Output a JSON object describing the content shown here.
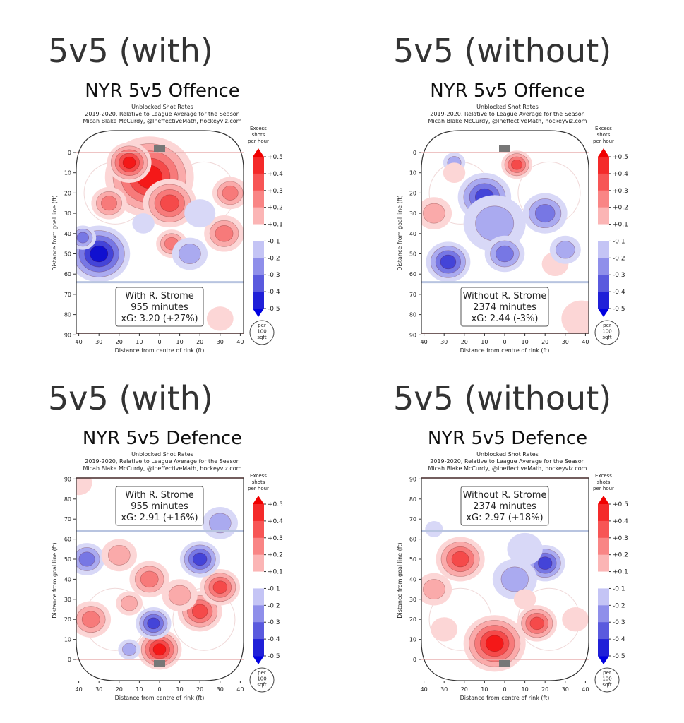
{
  "colorbar": {
    "label_lines": [
      "Excess",
      "shots",
      "per hour"
    ],
    "ticks": [
      "+0.5",
      "+0.4",
      "+0.3",
      "+0.2",
      "+0.1",
      "-0.1",
      "-0.2",
      "-0.3",
      "-0.4",
      "-0.5"
    ],
    "band_colors": [
      "#f42a2a",
      "#f75555",
      "#f98585",
      "#fbb5b5",
      "#ffffff",
      "#c4c4f5",
      "#8f8fea",
      "#5a5ade",
      "#2020d8"
    ],
    "tip_top": "#f00000",
    "tip_bottom": "#0000e0",
    "unit_lines": [
      "per",
      "100",
      "sqft"
    ]
  },
  "level_colors": {
    "0.5": "#f41818",
    "0.4": "#f54a4a",
    "0.3": "#f77a7a",
    "0.2": "#faaaaa",
    "0.1": "#fcd6d6",
    "-0.1": "#d8d8f7",
    "-0.2": "#aaaaf0",
    "-0.3": "#7777e4",
    "-0.4": "#4444d8",
    "-0.5": "#1010d0"
  },
  "chart_data": [
    {
      "type": "heatmap",
      "heading": "5v5 (with)",
      "title": "NYR 5v5 Offence",
      "subtitle_lines": [
        "Unblocked Shot Rates",
        "2019-2020, Relative to League Average for the Season",
        "Micah Blake McCurdy, @IneffectiveMath, hockeyviz.com"
      ],
      "mode": "offence",
      "xlabel": "Distance from centre of rink (ft)",
      "ylabel": "Distance from goal line (ft)",
      "xticks": [
        "40",
        "30",
        "20",
        "10",
        "0",
        "10",
        "20",
        "30",
        "40"
      ],
      "yticks": [
        "0",
        "10",
        "20",
        "30",
        "40",
        "50",
        "60",
        "70",
        "80",
        "90"
      ],
      "info": [
        "With R. Strome",
        "955 minutes",
        "xG: 3.20 (+27%)"
      ],
      "hotspots": [
        {
          "x": -5,
          "y": 12,
          "r": 20,
          "v": 0.5
        },
        {
          "x": -15,
          "y": 5,
          "r": 10,
          "v": 0.5
        },
        {
          "x": 5,
          "y": 25,
          "r": 12,
          "v": 0.4
        },
        {
          "x": -25,
          "y": 25,
          "r": 8,
          "v": 0.3
        },
        {
          "x": 35,
          "y": 20,
          "r": 8,
          "v": 0.3
        },
        {
          "x": 32,
          "y": 40,
          "r": 9,
          "v": 0.3
        },
        {
          "x": 6,
          "y": 45,
          "r": 7,
          "v": 0.3
        },
        {
          "x": -30,
          "y": 50,
          "r": 14,
          "v": -0.5
        },
        {
          "x": -38,
          "y": 42,
          "r": 6,
          "v": -0.3
        },
        {
          "x": 15,
          "y": 50,
          "r": 8,
          "v": -0.2
        },
        {
          "x": 20,
          "y": 30,
          "r": 7,
          "v": -0.1
        },
        {
          "x": 30,
          "y": 82,
          "r": 6,
          "v": 0.1
        },
        {
          "x": -8,
          "y": 35,
          "r": 5,
          "v": -0.1
        }
      ]
    },
    {
      "type": "heatmap",
      "heading": "5v5 (without)",
      "title": "NYR 5v5 Offence",
      "subtitle_lines": [
        "Unblocked Shot Rates",
        "2019-2020, Relative to League Average for the Season",
        "Micah Blake McCurdy, @IneffectiveMath, hockeyviz.com"
      ],
      "mode": "offence",
      "xlabel": "Distance from centre of rink (ft)",
      "ylabel": "Distance from goal line (ft)",
      "xticks": [
        "40",
        "30",
        "20",
        "10",
        "0",
        "10",
        "20",
        "30",
        "40"
      ],
      "yticks": [
        "0",
        "10",
        "20",
        "30",
        "40",
        "50",
        "60",
        "70",
        "80",
        "90"
      ],
      "info": [
        "Without R. Strome",
        "2374 minutes",
        "xG: 2.44 (-3%)"
      ],
      "hotspots": [
        {
          "x": 6,
          "y": 6,
          "r": 7,
          "v": 0.4
        },
        {
          "x": -10,
          "y": 22,
          "r": 12,
          "v": -0.4
        },
        {
          "x": -5,
          "y": 35,
          "r": 14,
          "v": -0.2
        },
        {
          "x": -28,
          "y": 54,
          "r": 10,
          "v": -0.4
        },
        {
          "x": 0,
          "y": 50,
          "r": 9,
          "v": -0.3
        },
        {
          "x": 20,
          "y": 30,
          "r": 10,
          "v": -0.3
        },
        {
          "x": -35,
          "y": 30,
          "r": 8,
          "v": 0.2
        },
        {
          "x": 25,
          "y": 55,
          "r": 6,
          "v": 0.1
        },
        {
          "x": 38,
          "y": 82,
          "r": 9,
          "v": 0.1
        },
        {
          "x": 30,
          "y": 48,
          "r": 7,
          "v": -0.2
        },
        {
          "x": -25,
          "y": 5,
          "r": 5,
          "v": -0.2
        },
        {
          "x": -25,
          "y": 10,
          "r": 5,
          "v": 0.1
        }
      ]
    },
    {
      "type": "heatmap",
      "heading": "5v5 (with)",
      "title": "NYR 5v5 Defence",
      "subtitle_lines": [
        "Unblocked Shot Rates",
        "2019-2020, Relative to League Average for the Season",
        "Micah Blake McCurdy, @IneffectiveMath, hockeyviz.com"
      ],
      "mode": "defence",
      "xlabel": "Distance from centre of rink (ft)",
      "ylabel": "Distance from goal line (ft)",
      "xticks": [
        "40",
        "30",
        "20",
        "10",
        "0",
        "10",
        "20",
        "30",
        "40"
      ],
      "yticks": [
        "0",
        "10",
        "20",
        "30",
        "40",
        "50",
        "60",
        "70",
        "80",
        "90"
      ],
      "info": [
        "With R. Strome",
        "955 minutes",
        "xG: 2.91 (+16%)"
      ],
      "hotspots": [
        {
          "x": 0,
          "y": 5,
          "r": 10,
          "v": 0.5
        },
        {
          "x": -3,
          "y": 18,
          "r": 8,
          "v": -0.4
        },
        {
          "x": 20,
          "y": 24,
          "r": 10,
          "v": 0.4
        },
        {
          "x": 30,
          "y": 36,
          "r": 9,
          "v": 0.4
        },
        {
          "x": 20,
          "y": 50,
          "r": 9,
          "v": -0.4
        },
        {
          "x": -36,
          "y": 50,
          "r": 8,
          "v": -0.3
        },
        {
          "x": -34,
          "y": 20,
          "r": 9,
          "v": 0.3
        },
        {
          "x": -5,
          "y": 40,
          "r": 9,
          "v": 0.3
        },
        {
          "x": -20,
          "y": 52,
          "r": 8,
          "v": 0.2
        },
        {
          "x": -15,
          "y": 5,
          "r": 5,
          "v": -0.2
        },
        {
          "x": 30,
          "y": 68,
          "r": 8,
          "v": -0.2
        },
        {
          "x": -40,
          "y": 88,
          "r": 6,
          "v": 0.1
        },
        {
          "x": 10,
          "y": 32,
          "r": 8,
          "v": 0.2
        },
        {
          "x": -15,
          "y": 28,
          "r": 6,
          "v": 0.2
        }
      ]
    },
    {
      "type": "heatmap",
      "heading": "5v5 (without)",
      "title": "NYR 5v5 Defence",
      "subtitle_lines": [
        "Unblocked Shot Rates",
        "2019-2020, Relative to League Average for the Season",
        "Micah Blake McCurdy, @IneffectiveMath, hockeyviz.com"
      ],
      "mode": "defence",
      "xlabel": "Distance from centre of rink (ft)",
      "ylabel": "Distance from goal line (ft)",
      "xticks": [
        "40",
        "30",
        "20",
        "10",
        "0",
        "10",
        "20",
        "30",
        "40"
      ],
      "yticks": [
        "0",
        "10",
        "20",
        "30",
        "40",
        "50",
        "60",
        "70",
        "80",
        "90"
      ],
      "info": [
        "Without R. Strome",
        "2374 minutes",
        "xG: 2.97 (+18%)"
      ],
      "hotspots": [
        {
          "x": -5,
          "y": 8,
          "r": 14,
          "v": 0.5
        },
        {
          "x": 16,
          "y": 18,
          "r": 9,
          "v": 0.4
        },
        {
          "x": -22,
          "y": 50,
          "r": 11,
          "v": 0.4
        },
        {
          "x": -35,
          "y": 35,
          "r": 8,
          "v": 0.2
        },
        {
          "x": 20,
          "y": 48,
          "r": 9,
          "v": -0.4
        },
        {
          "x": 5,
          "y": 40,
          "r": 10,
          "v": -0.2
        },
        {
          "x": 10,
          "y": 30,
          "r": 5,
          "v": 0.1
        },
        {
          "x": -35,
          "y": 65,
          "r": 4,
          "v": -0.1
        },
        {
          "x": 35,
          "y": 20,
          "r": 6,
          "v": 0.1
        },
        {
          "x": 10,
          "y": 55,
          "r": 8,
          "v": -0.1
        },
        {
          "x": -30,
          "y": 15,
          "r": 6,
          "v": 0.1
        }
      ]
    }
  ]
}
